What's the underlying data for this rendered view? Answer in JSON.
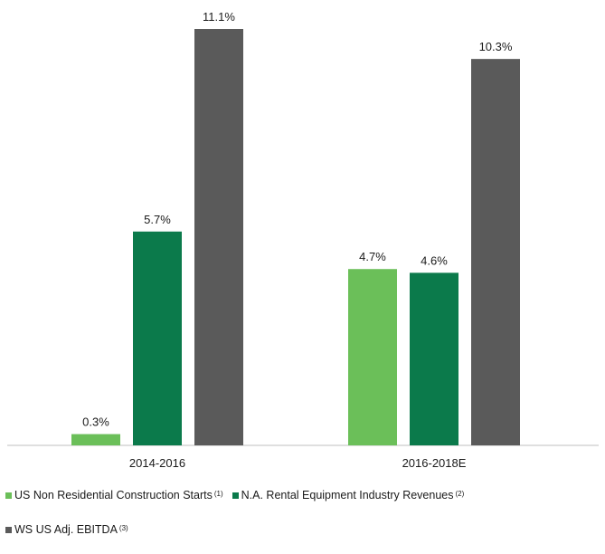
{
  "chart_data": {
    "type": "bar",
    "categories": [
      "2014-2016",
      "2016-2018E"
    ],
    "series": [
      {
        "name": "US Non Residential Construction Starts",
        "note": "(1)",
        "color": "#6bbf59",
        "values": [
          0.3,
          4.7
        ],
        "labels": [
          "0.3%",
          "4.7%"
        ]
      },
      {
        "name": "N.A. Rental Equipment Industry Revenues",
        "note": "(2)",
        "color": "#0b7a4b",
        "values": [
          5.7,
          4.6
        ],
        "labels": [
          "5.7%",
          "4.6%"
        ]
      },
      {
        "name": "WS US Adj. EBITDA",
        "note": "(3)",
        "color": "#5a5a5a",
        "values": [
          11.1,
          10.3
        ],
        "labels": [
          "11.1%",
          "10.3%"
        ]
      }
    ],
    "unit": "%",
    "ylim": [
      0,
      11.1
    ],
    "grid": false,
    "legend_position": "bottom",
    "title": "",
    "xlabel": "",
    "ylabel": ""
  },
  "colors": {
    "axis": "#bfbfbf"
  }
}
